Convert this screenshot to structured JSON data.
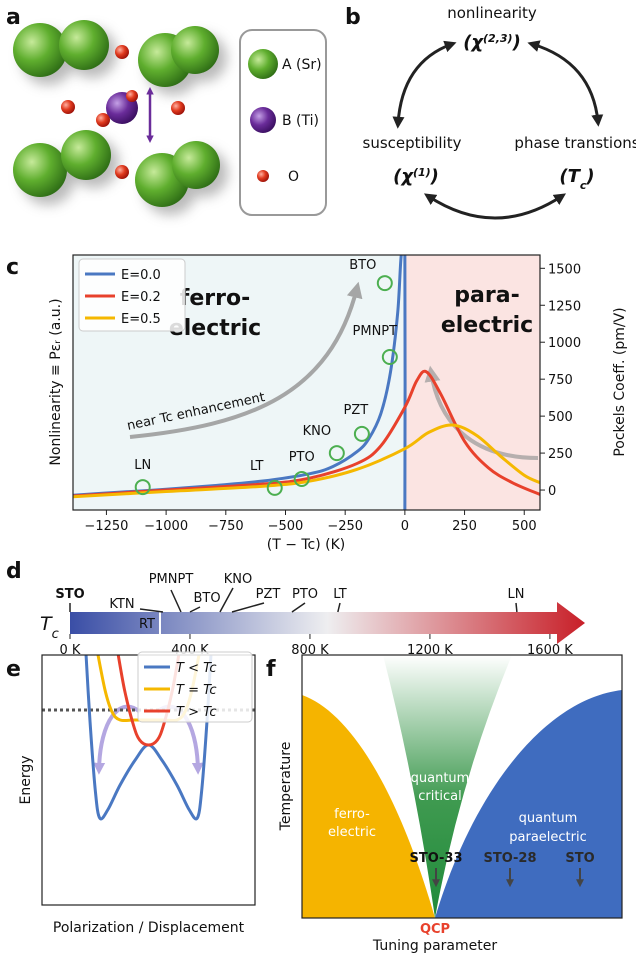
{
  "panel_a": {
    "label": "a",
    "legend": [
      {
        "text": "A (Sr)",
        "color": "#5aa62e"
      },
      {
        "text": "B (Ti)",
        "color": "#6a2c9a"
      },
      {
        "text": "O",
        "color": "#e03a1e"
      }
    ]
  },
  "panel_b": {
    "label": "b",
    "nodes": [
      {
        "text": "nonlinearity",
        "symbol": [
          "(χ",
          "(2,3)",
          ")"
        ]
      },
      {
        "text": "susceptibility",
        "symbol": [
          "(χ",
          "(1)",
          ")"
        ]
      },
      {
        "text": "phase transtions",
        "symbol": [
          "(T",
          "c",
          ")"
        ]
      }
    ]
  },
  "chart_data": [
    {
      "panel_label": "c",
      "type": "line",
      "xlabel": "(T − Tc) (K)",
      "ylabel": "Nonlinearity ≡ Pεᵣ (a.u.)",
      "y2label": "Pockels Coeff. (pm/V)",
      "xlim": [
        -1390,
        566
      ],
      "xticks": [
        {
          "value": -1250,
          "label": "−1250"
        },
        {
          "value": -1000,
          "label": "−1000"
        },
        {
          "value": -750,
          "label": "−750"
        },
        {
          "value": -500,
          "label": "−500"
        },
        {
          "value": -250,
          "label": "−250"
        },
        0,
        250,
        500
      ],
      "ylim": [
        -135,
        1590
      ],
      "y2lim": [
        -135,
        1590
      ],
      "y2ticks": [
        0,
        250,
        500,
        750,
        1000,
        1250,
        1500
      ],
      "y2color": "#3a9a3a",
      "legend": "upper left",
      "phase_boundary": 0,
      "region_colors": [
        "#eef6f7",
        "#fbe4e2"
      ],
      "series": [
        {
          "name": "E=0.0",
          "color": "#4a78c2",
          "x": [
            -1390,
            -1200,
            -1000,
            -800,
            -600,
            -400,
            -300,
            -200,
            -150,
            -100,
            -60,
            -30,
            -15,
            0,
            0
          ],
          "values": [
            -35,
            -15,
            5,
            30,
            60,
            110,
            160,
            260,
            350,
            520,
            800,
            1200,
            1590,
            1590,
            -135
          ]
        },
        {
          "name": "E=0.2",
          "color": "#e8412c",
          "x": [
            -1390,
            -1000,
            -600,
            -400,
            -200,
            -100,
            0,
            50,
            90,
            150,
            250,
            350,
            450,
            566
          ],
          "values": [
            -40,
            0,
            40,
            80,
            180,
            300,
            560,
            740,
            800,
            650,
            330,
            150,
            50,
            -30
          ]
        },
        {
          "name": "E=0.5",
          "color": "#f5b800",
          "x": [
            -1390,
            -1000,
            -600,
            -400,
            -200,
            0,
            100,
            200,
            300,
            400,
            500,
            566
          ],
          "values": [
            -45,
            -10,
            25,
            60,
            140,
            280,
            390,
            440,
            370,
            230,
            100,
            50
          ]
        }
      ],
      "materials": {
        "axis": "y2",
        "color": "#4caf50",
        "labels": [
          "LN",
          "LT",
          "PTO",
          "KNO",
          "PZT",
          "PMNPT",
          "BTO"
        ],
        "x": [
          -1098,
          -545,
          -432,
          -285,
          -180,
          -63,
          -84
        ],
        "values": [
          20,
          15,
          75,
          250,
          380,
          900,
          1400
        ]
      },
      "annotations": {
        "ferro": {
          "lines": [
            "ferro-",
            "electric"
          ],
          "color": "#4a78c2"
        },
        "para": {
          "lines": [
            "para-",
            "electric"
          ],
          "color": "#e8412c"
        },
        "enhancement": "near Tc enhancement"
      }
    },
    {
      "panel_label": "d",
      "type": "scale",
      "label": [
        "T",
        "c"
      ],
      "xlim": [
        0,
        1717
      ],
      "xticks": [
        {
          "value": 0,
          "label": "0 K"
        },
        {
          "value": 400,
          "label": "400 K"
        },
        {
          "value": 800,
          "label": "800 K"
        },
        {
          "value": 1200,
          "label": "1200 K"
        },
        {
          "value": 1600,
          "label": "1600 K"
        }
      ],
      "gradient": [
        "#3a4ea6",
        "#eeeef0",
        "#c81f28"
      ],
      "room_temperature": {
        "label": "RT",
        "value": 300
      },
      "materials": {
        "labels": [
          "STO",
          "KTN",
          "PMNPT",
          "BTO",
          "KNO",
          "PZT",
          "PTO",
          "LT",
          "LN"
        ],
        "values": [
          0,
          310,
          370,
          400,
          500,
          540,
          740,
          893,
          1490
        ],
        "highlight_color": "#3a5bb0"
      }
    },
    {
      "panel_label": "e",
      "type": "line",
      "xlabel": "Polarization / Displacement",
      "ylabel": "Energy",
      "xlim": [
        -1.2,
        1.2
      ],
      "ylim": [
        -1.6,
        0.9
      ],
      "legend": "upper right",
      "reference_line": 0.35,
      "series": [
        {
          "name": "T < Tc",
          "color": "#4a78c2",
          "x": [
            -0.71,
            -0.66,
            -0.6,
            -0.55,
            -0.46,
            -0.32,
            -0.15,
            0,
            0.15,
            0.32,
            0.46,
            0.55,
            0.6,
            0.66,
            0.71
          ],
          "values": [
            1.0,
            0.25,
            -0.45,
            -0.73,
            -0.65,
            -0.4,
            -0.15,
            0,
            -0.15,
            -0.4,
            -0.65,
            -0.73,
            -0.45,
            0.25,
            1.0
          ]
        },
        {
          "name": "T = Tc",
          "color": "#f5b800",
          "x": [
            -0.59,
            -0.49,
            -0.41,
            -0.32,
            -0.16,
            0,
            0.16,
            0.32,
            0.41,
            0.49,
            0.59
          ],
          "values": [
            1.0,
            0.55,
            0.33,
            0.25,
            0.25,
            0.25,
            0.25,
            0.25,
            0.33,
            0.55,
            1.0
          ]
        },
        {
          "name": "T > Tc",
          "color": "#e8412c",
          "x": [
            -0.36,
            -0.27,
            -0.17,
            -0.1,
            0,
            0.1,
            0.17,
            0.27,
            0.36
          ],
          "values": [
            1.0,
            0.55,
            0.2,
            0.05,
            0,
            0.05,
            0.2,
            0.55,
            1.0
          ]
        }
      ]
    }
  ],
  "panel_f": {
    "label": "f",
    "xlabel": "Tuning parameter",
    "ylabel": "Temperature",
    "ferroelectric": [
      "ferro-",
      "electric"
    ],
    "quantum_critical": [
      "quantum",
      "critical"
    ],
    "quantum_paraelectric": [
      "quantum",
      "paraelectric"
    ],
    "samples": [
      "STO-33",
      "STO-28",
      "STO"
    ],
    "qcp": "QCP"
  }
}
